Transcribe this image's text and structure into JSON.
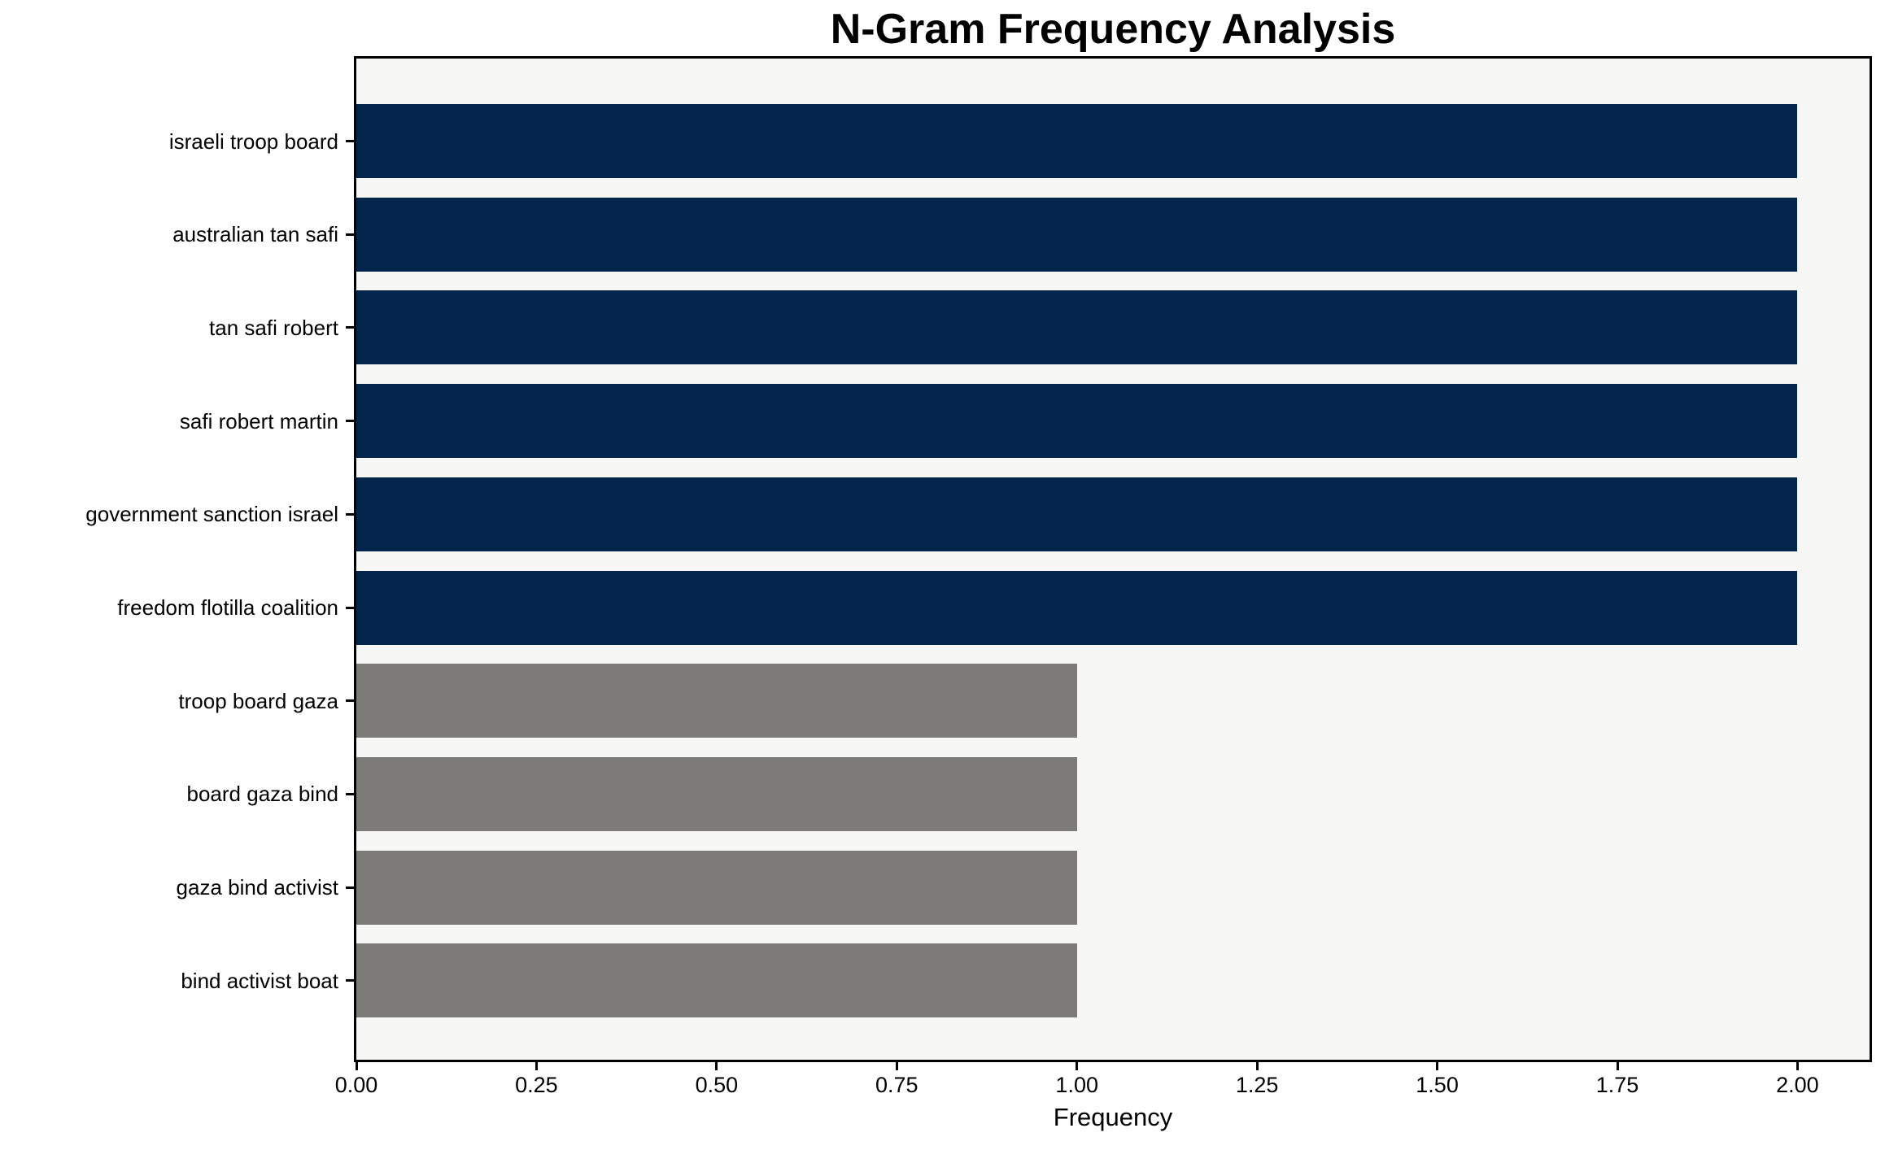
{
  "chart_data": {
    "type": "bar",
    "orientation": "horizontal",
    "title": "N-Gram Frequency Analysis",
    "xlabel": "Frequency",
    "ylabel": "",
    "categories": [
      "israeli troop board",
      "australian tan safi",
      "tan safi robert",
      "safi robert martin",
      "government sanction israel",
      "freedom flotilla coalition",
      "troop board gaza",
      "board gaza bind",
      "gaza bind activist",
      "bind activist boat"
    ],
    "values": [
      2,
      2,
      2,
      2,
      2,
      2,
      1,
      1,
      1,
      1
    ],
    "bar_colors": [
      "#04254c",
      "#04254c",
      "#04254c",
      "#04254c",
      "#04254c",
      "#04254c",
      "#7c7b77",
      "#7c7b77",
      "#7c7b77",
      "#7c7b77"
    ],
    "xlim": [
      0,
      2.1
    ],
    "x_ticks": [
      0,
      0.25,
      0.5,
      0.75,
      1.0,
      1.25,
      1.5,
      1.75,
      2.0
    ],
    "x_tick_labels": [
      "0.00",
      "0.25",
      "0.50",
      "0.75",
      "1.00",
      "1.25",
      "1.50",
      "1.75",
      "2.00"
    ],
    "grid": false,
    "legend": null,
    "colors": {
      "bar_primary": "#04254c",
      "bar_secondary": "#7c7b77",
      "plot_background": "#f7f7f6",
      "frame": "#000000",
      "text": "#000000"
    }
  }
}
